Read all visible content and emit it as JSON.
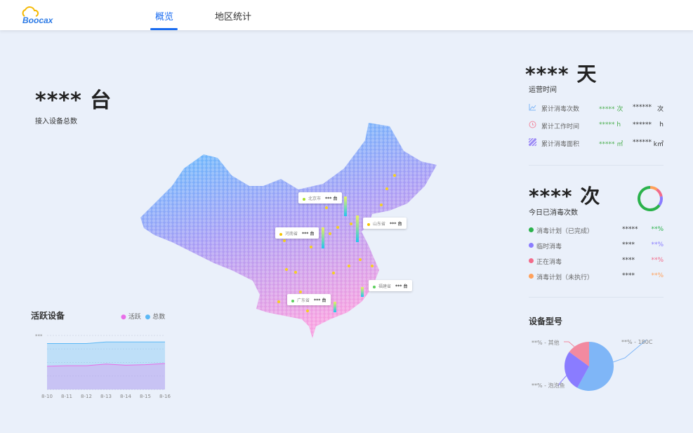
{
  "header": {
    "logo": "Boocax",
    "tabs": [
      {
        "label": "概览",
        "active": true
      },
      {
        "label": "地区统计",
        "active": false
      }
    ]
  },
  "devices": {
    "value": "**** 台",
    "label": "接入设备总数"
  },
  "runtime": {
    "value": "**** 天",
    "label": "运营时间",
    "rows": [
      {
        "icon": "line-chart-icon",
        "label": "累计消毒次数",
        "v1": "***** 次",
        "v2": "******",
        "unit": "次"
      },
      {
        "icon": "clock-icon",
        "label": "累计工作时间",
        "v1": "***** h",
        "v2": "******",
        "unit": "h"
      },
      {
        "icon": "area-hatch-icon",
        "label": "累计消毒面积",
        "v1": "***** ㎡",
        "v2": "******",
        "unit": "k㎡"
      }
    ]
  },
  "today": {
    "value": "**** 次",
    "label": "今日已消毒次数",
    "items": [
      {
        "label": "消毒计划（已完成）",
        "count": "*****",
        "pct": "**%",
        "color": "#2bb24c",
        "share": 65
      },
      {
        "label": "临时消毒",
        "count": "****",
        "pct": "**%",
        "color": "#8a7cff",
        "share": 13
      },
      {
        "label": "正在消毒",
        "count": "****",
        "pct": "**%",
        "color": "#f26b8a",
        "share": 12
      },
      {
        "label": "消毒计划（未执行）",
        "count": "****",
        "pct": "**%",
        "color": "#ffa05a",
        "share": 10
      }
    ]
  },
  "map": {
    "callouts": [
      {
        "name": "北京市",
        "value": "*** 台",
        "color": "#a8e02a"
      },
      {
        "name": "山东省",
        "value": "*** 台",
        "color": "#f5c400"
      },
      {
        "name": "河南省",
        "value": "*** 台",
        "color": "#f5c400"
      },
      {
        "name": "福建省",
        "value": "*** 台",
        "color": "#5ccf5c"
      },
      {
        "name": "广东省",
        "value": "*** 台",
        "color": "#5ccf5c"
      }
    ]
  },
  "chart_data": [
    {
      "type": "area",
      "title": "活跃设备",
      "x": [
        "8-10",
        "8-11",
        "8-12",
        "8-13",
        "8-14",
        "8-15",
        "8-16"
      ],
      "ytick_label": "***",
      "ylim": [
        0,
        100
      ],
      "legend": "top-right",
      "grid": true,
      "series": [
        {
          "name": "活跃",
          "color": "#e86ee8",
          "values": [
            43,
            44,
            44,
            47,
            45,
            46,
            48
          ]
        },
        {
          "name": "总数",
          "color": "#5bb8f5",
          "values": [
            85,
            85,
            85,
            88,
            88,
            88,
            88
          ]
        }
      ]
    },
    {
      "type": "pie",
      "title": "设备型号",
      "slices": [
        {
          "label": "**% - 180C",
          "value": 58,
          "color": "#7fb6f7"
        },
        {
          "label": "**% - 泡泡鱼",
          "value": 27,
          "color": "#8a7cff"
        },
        {
          "label": "**% - 其他",
          "value": 15,
          "color": "#f28aa0"
        }
      ]
    }
  ]
}
